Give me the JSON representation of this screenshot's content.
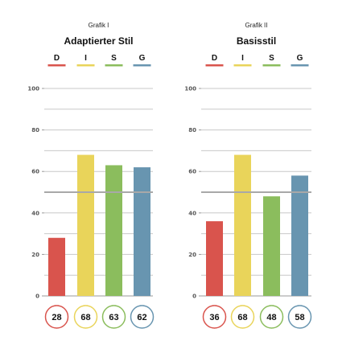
{
  "chart_data": [
    {
      "type": "bar",
      "kicker": "Grafik I",
      "title": "Adaptierter Stil",
      "categories": [
        "D",
        "I",
        "S",
        "G"
      ],
      "values": [
        28,
        68,
        63,
        62
      ],
      "value_labels": [
        "28",
        "68",
        "63",
        "62"
      ],
      "ylim": [
        0,
        100
      ],
      "yticks": [
        "0",
        "20",
        "40",
        "60",
        "80",
        "100"
      ],
      "grid": true,
      "reference_line": 50,
      "legend": "top"
    },
    {
      "type": "bar",
      "kicker": "Grafik II",
      "title": "Basisstil",
      "categories": [
        "D",
        "I",
        "S",
        "G"
      ],
      "values": [
        36,
        68,
        48,
        58
      ],
      "value_labels": [
        "36",
        "68",
        "48",
        "58"
      ],
      "ylim": [
        0,
        100
      ],
      "yticks": [
        "0",
        "20",
        "40",
        "60",
        "80",
        "100"
      ],
      "grid": true,
      "reference_line": 50,
      "legend": "top"
    }
  ],
  "colors": {
    "D": "#d9544d",
    "I": "#e9d45a",
    "S": "#8bbd5d",
    "G": "#6895b0",
    "grid": "#c8c8c8",
    "reference": "#a8a8a8",
    "axis": "#999999"
  }
}
